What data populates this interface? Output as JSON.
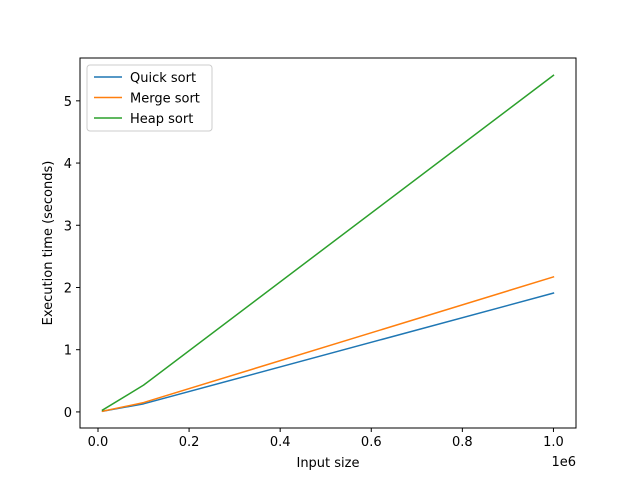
{
  "chart_data": {
    "type": "line",
    "xlabel": "Input size",
    "ylabel": "Execution time (seconds)",
    "x_offset_label": "1e6",
    "x": [
      10000,
      100000,
      1000000
    ],
    "xlim": [
      -0.0395,
      1.0495
    ],
    "ylim": [
      -0.2585,
      5.6885
    ],
    "xticks": [
      0.0,
      0.2,
      0.4,
      0.6,
      0.8,
      1.0
    ],
    "xtick_labels": [
      "0.0",
      "0.2",
      "0.4",
      "0.6",
      "0.8",
      "1.0"
    ],
    "yticks": [
      0,
      1,
      2,
      3,
      4,
      5
    ],
    "ytick_labels": [
      "0",
      "1",
      "2",
      "3",
      "4",
      "5"
    ],
    "legend_position": "top-left",
    "grid": false,
    "series": [
      {
        "name": "Quick sort",
        "color": "#1f77b4",
        "values": [
          0.01,
          0.13,
          1.91
        ]
      },
      {
        "name": "Merge sort",
        "color": "#ff7f0e",
        "values": [
          0.01,
          0.15,
          2.17
        ]
      },
      {
        "name": "Heap sort",
        "color": "#2ca02c",
        "values": [
          0.03,
          0.43,
          5.41
        ]
      }
    ]
  }
}
